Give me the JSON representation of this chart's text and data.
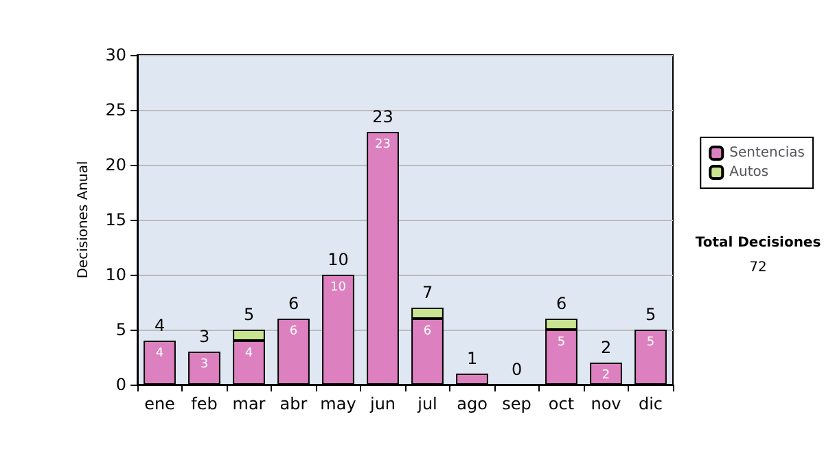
{
  "chart_data": {
    "type": "bar",
    "stacked": true,
    "ylabel": "Decisiones Anual",
    "categories": [
      "ene",
      "feb",
      "mar",
      "abr",
      "may",
      "jun",
      "jul",
      "ago",
      "sep",
      "oct",
      "nov",
      "dic"
    ],
    "series": [
      {
        "name": "Sentencias",
        "color": "#dd80bf",
        "values": [
          4,
          3,
          4,
          6,
          10,
          23,
          6,
          1,
          0,
          5,
          2,
          5
        ],
        "value_labels": [
          "4",
          "3",
          "4",
          "6",
          "10",
          "23",
          "6",
          null,
          null,
          "5",
          "2",
          "5"
        ]
      },
      {
        "name": "Autos",
        "color": "#c8e490",
        "values": [
          0,
          0,
          1,
          0,
          0,
          0,
          1,
          0,
          0,
          1,
          0,
          0
        ]
      }
    ],
    "totals": [
      "4",
      "3",
      "5",
      "6",
      "10",
      "23",
      "7",
      "1",
      "0",
      "6",
      "2",
      "5"
    ],
    "ylim": [
      0,
      30
    ],
    "yticks": [
      0,
      5,
      10,
      15,
      20,
      25,
      30
    ],
    "grid": "y",
    "legend": "right",
    "annotations": [
      "Total Decisiones",
      "72"
    ]
  }
}
